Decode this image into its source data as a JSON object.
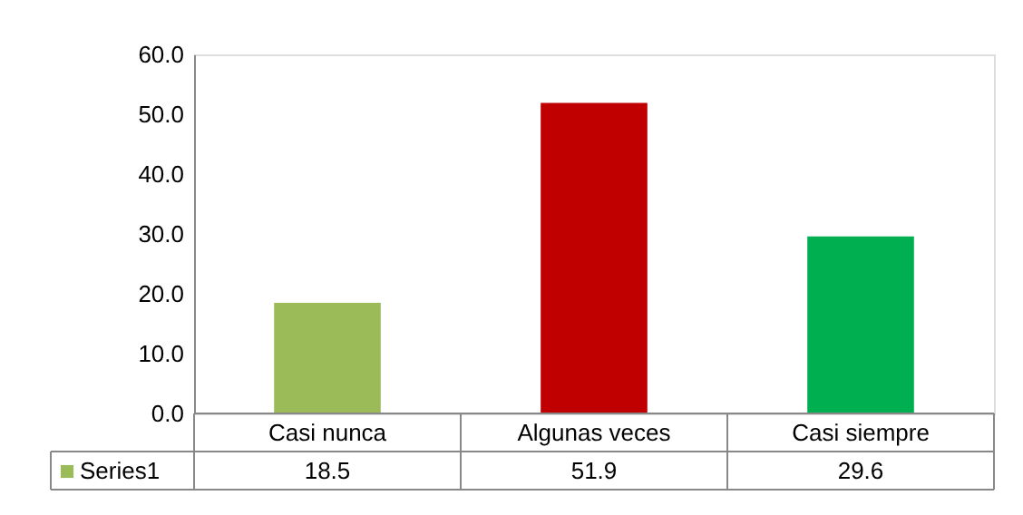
{
  "chart_data": {
    "type": "bar",
    "categories": [
      "Casi nunca",
      "Algunas veces",
      "Casi siempre"
    ],
    "series": [
      {
        "name": "Series1",
        "colors": [
          "#9bbb59",
          "#c00000",
          "#00b050"
        ],
        "values": [
          18.5,
          51.9,
          29.6
        ]
      }
    ],
    "ylim": [
      0,
      60
    ],
    "yticks": [
      {
        "value": 0,
        "label": "0.0"
      },
      {
        "value": 10,
        "label": "10.0"
      },
      {
        "value": 20,
        "label": "20.0"
      },
      {
        "value": 30,
        "label": "30.0"
      },
      {
        "value": 40,
        "label": "40.0"
      },
      {
        "value": 50,
        "label": "50.0"
      },
      {
        "value": 60,
        "label": "60.0"
      }
    ],
    "data_labels": true,
    "legend": "bottom",
    "grid": false
  }
}
